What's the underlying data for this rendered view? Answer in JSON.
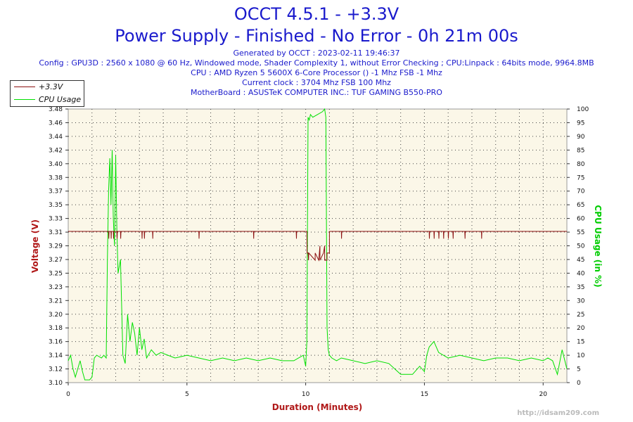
{
  "title": "OCCT 4.5.1 - +3.3V",
  "subtitle": "Power Supply - Finished - No Error - 0h 21m 00s",
  "info_lines": [
    "Generated by OCCT : 2023-02-11 19:46:37",
    "Config : GPU3D : 2560 x 1080 @ 60 Hz, Windowed mode, Shader Complexity 1, without Error Checking ; CPU:Linpack : 64bits mode, 9964.8MB",
    "CPU : AMD Ryzen 5 5600X 6-Core Processor () -1 Mhz FSB -1 Mhz",
    "Current clock : 3704 Mhz FSB 100 Mhz",
    "MotherBoard : ASUSTeK COMPUTER INC.: TUF GAMING B550-PRO"
  ],
  "watermark": "http://idsam209.com",
  "colors": {
    "title": "#1a1acc",
    "voltage": "#8b1010",
    "cpu": "#00e000",
    "plot_bg": "#fbf7e8",
    "axis_label": "#b01818"
  },
  "chart_data": {
    "type": "line",
    "title": "OCCT 4.5.1 - +3.3V",
    "xlabel": "Duration (Minutes)",
    "ylabel": "Voltage (V)",
    "y2label": "CPU Usage (in %)",
    "xlim": [
      0,
      21
    ],
    "ylim": [
      3.1,
      3.48
    ],
    "y2lim": [
      0,
      100
    ],
    "x_ticks": [
      "0",
      "5",
      "10",
      "15",
      "20"
    ],
    "y_ticks": [
      "3.10",
      "3.12",
      "3.14",
      "3.16",
      "3.18",
      "3.20",
      "3.21",
      "3.23",
      "3.25",
      "3.27",
      "3.29",
      "3.31",
      "3.33",
      "3.35",
      "3.37",
      "3.38",
      "3.40",
      "3.42",
      "3.44",
      "3.46",
      "3.48"
    ],
    "y2_ticks": [
      "0",
      "5",
      "10",
      "15",
      "20",
      "25",
      "30",
      "35",
      "40",
      "45",
      "50",
      "55",
      "60",
      "65",
      "70",
      "75",
      "80",
      "85",
      "90",
      "95",
      "100"
    ],
    "grid": true,
    "legend_position": "top-left",
    "series": [
      {
        "name": "+3.3V",
        "axis": "left",
        "baseline": 3.31,
        "x": [
          0,
          1.7,
          1.71,
          1.72,
          1.8,
          1.81,
          1.82,
          1.9,
          1.91,
          1.92,
          2.05,
          2.06,
          2.07,
          2.2,
          2.21,
          2.22,
          3.1,
          3.11,
          3.12,
          3.2,
          3.21,
          3.22,
          3.55,
          3.56,
          3.57,
          5.5,
          5.51,
          5.52,
          7.8,
          7.81,
          7.82,
          9.6,
          9.61,
          9.62,
          10.05,
          10.06,
          10.07,
          10.1,
          10.12,
          10.13,
          10.4,
          10.4,
          10.55,
          10.6,
          10.6,
          10.75,
          10.8,
          10.8,
          10.9,
          10.9,
          11.0,
          11.0,
          11.5,
          11.51,
          11.52,
          15.2,
          15.21,
          15.22,
          15.4,
          15.41,
          15.42,
          15.6,
          15.61,
          15.62,
          15.8,
          15.81,
          15.82,
          16.0,
          16.01,
          16.02,
          16.2,
          16.21,
          16.22,
          16.7,
          16.71,
          16.72,
          17.4,
          17.41,
          17.42,
          21
        ],
        "y": [
          3.31,
          3.31,
          3.3,
          3.31,
          3.31,
          3.3,
          3.31,
          3.31,
          3.3,
          3.31,
          3.31,
          3.3,
          3.31,
          3.31,
          3.3,
          3.31,
          3.31,
          3.3,
          3.31,
          3.31,
          3.3,
          3.31,
          3.31,
          3.3,
          3.31,
          3.31,
          3.3,
          3.31,
          3.31,
          3.3,
          3.31,
          3.31,
          3.3,
          3.31,
          3.31,
          3.28,
          3.28,
          3.28,
          3.27,
          3.28,
          3.27,
          3.28,
          3.27,
          3.29,
          3.27,
          3.28,
          3.29,
          3.27,
          3.27,
          3.28,
          3.28,
          3.31,
          3.31,
          3.3,
          3.31,
          3.31,
          3.3,
          3.31,
          3.31,
          3.3,
          3.31,
          3.31,
          3.3,
          3.31,
          3.31,
          3.3,
          3.31,
          3.31,
          3.3,
          3.31,
          3.31,
          3.3,
          3.31,
          3.31,
          3.3,
          3.31,
          3.31,
          3.3,
          3.31,
          3.31
        ]
      },
      {
        "name": "CPU Usage",
        "axis": "right",
        "x": [
          0,
          0.1,
          0.2,
          0.3,
          0.5,
          0.6,
          0.7,
          0.9,
          1.0,
          1.1,
          1.2,
          1.4,
          1.5,
          1.6,
          1.65,
          1.7,
          1.75,
          1.8,
          1.85,
          1.9,
          1.95,
          2.0,
          2.05,
          2.1,
          2.2,
          2.3,
          2.4,
          2.5,
          2.6,
          2.7,
          2.8,
          2.9,
          3.0,
          3.1,
          3.2,
          3.3,
          3.5,
          3.7,
          3.9,
          4.2,
          4.5,
          5.0,
          5.5,
          6.0,
          6.5,
          7.0,
          7.5,
          8.0,
          8.5,
          9.0,
          9.5,
          9.9,
          10.0,
          10.05,
          10.1,
          10.15,
          10.2,
          10.3,
          10.5,
          10.7,
          10.8,
          10.85,
          10.9,
          10.95,
          11.0,
          11.1,
          11.3,
          11.5,
          12.0,
          12.5,
          13.0,
          13.5,
          14.0,
          14.5,
          14.8,
          15.0,
          15.1,
          15.2,
          15.4,
          15.6,
          15.8,
          16.0,
          16.5,
          17.0,
          17.5,
          18.0,
          18.5,
          19.0,
          19.5,
          20.0,
          20.2,
          20.4,
          20.6,
          20.8,
          21.0
        ],
        "y": [
          8,
          10,
          5,
          2,
          8,
          4,
          1,
          1,
          2,
          9,
          10,
          9,
          10,
          9,
          45,
          70,
          82,
          65,
          85,
          60,
          50,
          83,
          55,
          40,
          45,
          10,
          7,
          25,
          15,
          22,
          18,
          10,
          20,
          12,
          16,
          9,
          12,
          10,
          11,
          10,
          9,
          10,
          9,
          8,
          9,
          8,
          9,
          8,
          9,
          8,
          8,
          10,
          6,
          15,
          97,
          96,
          98,
          97,
          98,
          99,
          100,
          97,
          20,
          12,
          10,
          9,
          8,
          9,
          8,
          7,
          8,
          7,
          3,
          3,
          6,
          4,
          10,
          13,
          15,
          11,
          10,
          9,
          10,
          9,
          8,
          9,
          9,
          8,
          9,
          8,
          9,
          8,
          3,
          12,
          5
        ]
      }
    ]
  }
}
